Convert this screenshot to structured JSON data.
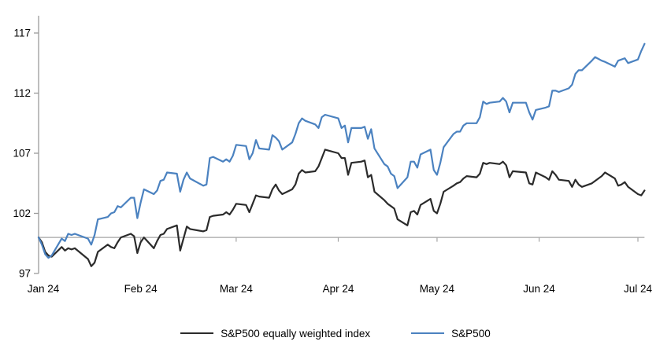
{
  "chart_data": {
    "type": "line",
    "title": "",
    "xlabel": "",
    "ylabel": "",
    "grid": "off",
    "legend_position": "bottom",
    "x_unit": "day offset from Jan 1 2024 (trading days)",
    "x": [
      0,
      1,
      2,
      3,
      4,
      7,
      8,
      9,
      10,
      11,
      15,
      16,
      17,
      18,
      21,
      22,
      23,
      24,
      25,
      28,
      29,
      30,
      31,
      32,
      35,
      36,
      37,
      38,
      39,
      42,
      43,
      44,
      45,
      46,
      50,
      51,
      52,
      53,
      56,
      57,
      58,
      59,
      60,
      63,
      64,
      65,
      66,
      67,
      70,
      71,
      72,
      73,
      74,
      77,
      78,
      79,
      80,
      81,
      84,
      85,
      86,
      87,
      91,
      92,
      93,
      94,
      95,
      98,
      99,
      100,
      101,
      102,
      105,
      106,
      107,
      108,
      109,
      112,
      113,
      114,
      115,
      116,
      119,
      120,
      121,
      122,
      123,
      126,
      127,
      128,
      129,
      130,
      133,
      134,
      135,
      136,
      137,
      140,
      141,
      142,
      143,
      144,
      148,
      149,
      150,
      151,
      154,
      155,
      156,
      157,
      158,
      161,
      162,
      163,
      164,
      165,
      168,
      169,
      171,
      172,
      175,
      176,
      177,
      178,
      179,
      182,
      183,
      184
    ],
    "series": [
      {
        "name": "S&P500 equally weighted index",
        "color": "#2b2b2b",
        "values": [
          100.0,
          99.6,
          98.8,
          98.5,
          98.4,
          99.2,
          98.9,
          99.1,
          99.0,
          99.1,
          98.2,
          97.6,
          97.9,
          98.8,
          99.4,
          99.2,
          99.1,
          99.6,
          100.0,
          100.3,
          100.1,
          98.7,
          99.6,
          100.0,
          99.1,
          99.7,
          100.2,
          100.3,
          100.7,
          101.0,
          98.9,
          99.9,
          100.9,
          100.7,
          100.5,
          100.6,
          101.7,
          101.8,
          101.9,
          102.1,
          101.9,
          102.3,
          102.8,
          102.7,
          102.1,
          102.8,
          103.5,
          103.4,
          103.3,
          104.0,
          104.4,
          103.9,
          103.6,
          104.0,
          104.4,
          105.3,
          105.6,
          105.4,
          105.5,
          105.9,
          106.6,
          107.3,
          107.0,
          106.6,
          106.6,
          105.2,
          106.2,
          106.3,
          106.4,
          105.0,
          105.2,
          103.8,
          103.1,
          102.8,
          102.6,
          102.4,
          101.5,
          101.0,
          102.1,
          102.2,
          101.9,
          102.7,
          103.2,
          102.2,
          102.0,
          102.8,
          103.8,
          104.3,
          104.5,
          104.6,
          104.9,
          105.1,
          105.0,
          105.3,
          106.2,
          106.1,
          106.2,
          106.1,
          106.3,
          106.0,
          105.0,
          105.5,
          105.4,
          104.5,
          104.4,
          105.4,
          105.0,
          104.8,
          105.5,
          105.2,
          104.8,
          104.7,
          104.2,
          104.8,
          104.4,
          104.2,
          104.5,
          104.7,
          105.1,
          105.4,
          104.9,
          104.3,
          104.4,
          104.6,
          104.2,
          103.6,
          103.5,
          103.9
        ]
      },
      {
        "name": "S&P500",
        "color": "#4b82c0",
        "values": [
          100.0,
          99.4,
          98.6,
          98.3,
          98.5,
          99.9,
          99.7,
          100.3,
          100.2,
          100.3,
          99.9,
          99.4,
          100.2,
          101.5,
          101.7,
          102.0,
          102.1,
          102.6,
          102.5,
          103.3,
          103.3,
          101.6,
          102.9,
          104.0,
          103.6,
          103.9,
          104.7,
          104.8,
          105.4,
          105.3,
          103.8,
          104.8,
          105.4,
          104.9,
          104.3,
          104.4,
          106.6,
          106.7,
          106.3,
          106.5,
          106.3,
          106.8,
          107.7,
          107.6,
          106.5,
          107.0,
          108.1,
          107.4,
          107.3,
          108.5,
          108.3,
          108.0,
          107.3,
          107.9,
          108.6,
          109.5,
          109.9,
          109.7,
          109.4,
          109.1,
          110.0,
          110.2,
          109.9,
          109.1,
          109.3,
          107.9,
          109.1,
          109.1,
          109.2,
          108.2,
          109.0,
          107.4,
          106.1,
          105.9,
          105.3,
          105.1,
          104.1,
          105.0,
          106.3,
          106.3,
          105.8,
          106.9,
          107.3,
          105.6,
          105.2,
          106.2,
          107.5,
          108.6,
          108.8,
          108.8,
          109.3,
          109.5,
          109.5,
          110.0,
          111.3,
          111.1,
          111.2,
          111.3,
          111.6,
          111.3,
          110.4,
          111.2,
          111.2,
          110.4,
          109.8,
          110.6,
          110.8,
          110.9,
          112.2,
          112.2,
          112.1,
          112.4,
          112.7,
          113.6,
          113.9,
          113.9,
          114.7,
          115.0,
          114.7,
          114.6,
          114.2,
          114.7,
          114.8,
          114.9,
          114.5,
          114.8,
          115.5,
          116.1
        ]
      }
    ],
    "x_axis": {
      "tick_days": [
        0,
        31,
        60,
        91,
        121,
        152,
        182
      ],
      "tick_labels": [
        "Jan 24",
        "Feb 24",
        "Mar 24",
        "Apr 24",
        "May 24",
        "Jun 24",
        "Jul 24"
      ]
    },
    "y_axis": {
      "min": 97,
      "max": 117,
      "tick_values": [
        97,
        102,
        107,
        112,
        117
      ],
      "baseline_value": 100
    }
  },
  "colors": {
    "sp500_line": "#4b82c0",
    "equal_weight_line": "#2b2b2b",
    "axis": "#9b9b9b",
    "baseline": "#a6a6a6",
    "text": "#000000",
    "background": "#ffffff"
  }
}
